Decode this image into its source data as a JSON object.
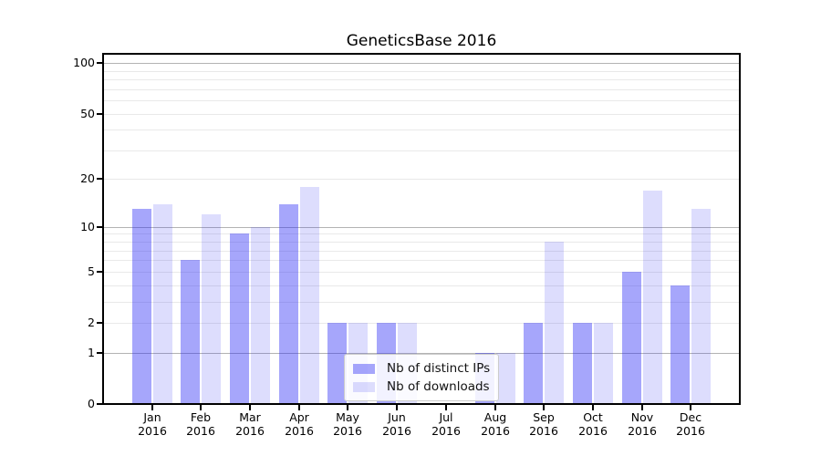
{
  "title": "GeneticsBase 2016",
  "chart_data": {
    "type": "bar",
    "title": "GeneticsBase 2016",
    "categories": [
      "Jan",
      "Feb",
      "Mar",
      "Apr",
      "May",
      "Jun",
      "Jul",
      "Aug",
      "Sep",
      "Oct",
      "Nov",
      "Dec"
    ],
    "category_year": "2016",
    "series": [
      {
        "name": "Nb of distinct IPs",
        "color": "rgba(40,40,245,0.41)",
        "values": [
          13,
          6,
          9,
          14,
          2,
          2,
          0,
          1,
          2,
          2,
          5,
          4
        ]
      },
      {
        "name": "Nb of downloads",
        "color": "rgba(40,40,245,0.155)",
        "values": [
          14,
          12,
          10,
          18,
          2,
          2,
          0,
          1,
          8,
          2,
          17,
          13
        ]
      }
    ],
    "y_axis": {
      "scale": "log1p",
      "ticks": [
        0,
        1,
        2,
        5,
        10,
        20,
        50,
        100
      ],
      "major_gridlines": [
        1,
        10,
        100
      ],
      "minor_gridlines": [
        2,
        3,
        4,
        5,
        6,
        7,
        8,
        9,
        20,
        30,
        40,
        50,
        60,
        70,
        80,
        90
      ],
      "ylim": [
        0,
        114
      ]
    },
    "xlabel": "",
    "ylabel": "",
    "grid": true,
    "legend_position": "lower-center-inside"
  },
  "colors": {
    "bar_base": "#2828f5",
    "major_grid": "#b3b3b3",
    "minor_grid": "#e9e9e9",
    "axis": "#000000",
    "background": "#ffffff",
    "legend_border": "#cccccc"
  }
}
